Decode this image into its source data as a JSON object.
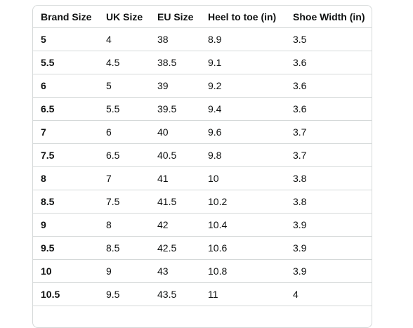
{
  "table": {
    "headers": [
      "Brand Size",
      "UK Size",
      "EU Size",
      "Heel to toe (in)",
      "Shoe Width (in)"
    ],
    "rows": [
      [
        "5",
        "4",
        "38",
        "8.9",
        "3.5"
      ],
      [
        "5.5",
        "4.5",
        "38.5",
        "9.1",
        "3.6"
      ],
      [
        "6",
        "5",
        "39",
        "9.2",
        "3.6"
      ],
      [
        "6.5",
        "5.5",
        "39.5",
        "9.4",
        "3.6"
      ],
      [
        "7",
        "6",
        "40",
        "9.6",
        "3.7"
      ],
      [
        "7.5",
        "6.5",
        "40.5",
        "9.8",
        "3.7"
      ],
      [
        "8",
        "7",
        "41",
        "10",
        "3.8"
      ],
      [
        "8.5",
        "7.5",
        "41.5",
        "10.2",
        "3.8"
      ],
      [
        "9",
        "8",
        "42",
        "10.4",
        "3.9"
      ],
      [
        "9.5",
        "8.5",
        "42.5",
        "10.6",
        "3.9"
      ],
      [
        "10",
        "9",
        "43",
        "10.8",
        "3.9"
      ],
      [
        "10.5",
        "9.5",
        "43.5",
        "11",
        "4"
      ]
    ]
  }
}
